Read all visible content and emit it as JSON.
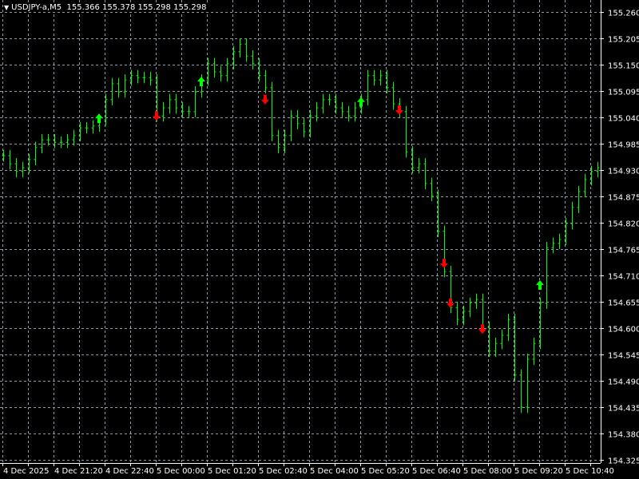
{
  "header": {
    "symbol": "USDJPY-a,M5",
    "ohlc": "155.366 155.378 155.298 155.298",
    "menu_icon": "triangle-down-icon"
  },
  "colors": {
    "background": "#000000",
    "grid": "#8a9aa8",
    "bars": "#00ff00",
    "buy_arrow": "#00ff00",
    "sell_arrow": "#ff0000",
    "axis_text": "#ffffff"
  },
  "chart_data": {
    "type": "bar",
    "timeframe": "M5",
    "price_ticks": [
      "155.260",
      "155.205",
      "155.150",
      "155.095",
      "155.040",
      "154.985",
      "154.930",
      "154.875",
      "154.820",
      "154.765",
      "154.710",
      "154.655",
      "154.600",
      "154.545",
      "154.490",
      "154.435",
      "154.380",
      "154.325"
    ],
    "time_ticks": [
      "4 Dec 2025",
      "4 Dec 21:20",
      "4 Dec 22:40",
      "5 Dec 00:00",
      "5 Dec 01:20",
      "5 Dec 02:40",
      "5 Dec 04:00",
      "5 Dec 05:20",
      "5 Dec 06:40",
      "5 Dec 08:00",
      "5 Dec 09:20",
      "5 Dec 10:40"
    ],
    "ylim": [
      154.315,
      155.285
    ],
    "grid": true,
    "closes": [
      154.96,
      154.943,
      154.927,
      154.935,
      154.952,
      154.977,
      154.993,
      154.993,
      154.988,
      154.988,
      154.993,
      155.002,
      155.018,
      155.018,
      155.022,
      155.035,
      155.077,
      155.11,
      155.093,
      155.118,
      155.127,
      155.123,
      155.123,
      155.118,
      155.043,
      155.06,
      155.077,
      155.06,
      155.052,
      155.052,
      155.093,
      155.118,
      155.152,
      155.135,
      155.127,
      155.152,
      155.177,
      155.193,
      155.168,
      155.152,
      155.127,
      155.102,
      155.002,
      154.977,
      155.002,
      155.043,
      155.027,
      155.01,
      155.043,
      155.06,
      155.077,
      155.077,
      155.06,
      155.052,
      155.043,
      155.06,
      155.077,
      155.127,
      155.118,
      155.127,
      155.102,
      155.068,
      155.052,
      154.968,
      154.935,
      154.943,
      154.902,
      154.877,
      154.802,
      154.718,
      154.643,
      154.618,
      154.635,
      154.652,
      154.66,
      154.602,
      154.552,
      154.568,
      154.585,
      154.618,
      154.502,
      154.435,
      154.535,
      154.568,
      154.652,
      154.768,
      154.777,
      154.785,
      154.818,
      154.852,
      154.885,
      154.91,
      154.927,
      154.935
    ],
    "signals": [
      {
        "type": "buy",
        "bar": 15,
        "price": 155.038
      },
      {
        "type": "sell",
        "bar": 24,
        "price": 155.043
      },
      {
        "type": "buy",
        "bar": 31,
        "price": 155.115
      },
      {
        "type": "sell",
        "bar": 41,
        "price": 155.077
      },
      {
        "type": "buy",
        "bar": 56,
        "price": 155.072
      },
      {
        "type": "sell",
        "bar": 62,
        "price": 155.055
      },
      {
        "type": "sell",
        "bar": 69,
        "price": 154.735
      },
      {
        "type": "sell",
        "bar": 70,
        "price": 154.652
      },
      {
        "type": "sell",
        "bar": 75,
        "price": 154.598
      },
      {
        "type": "buy",
        "bar": 84,
        "price": 154.69
      }
    ]
  }
}
